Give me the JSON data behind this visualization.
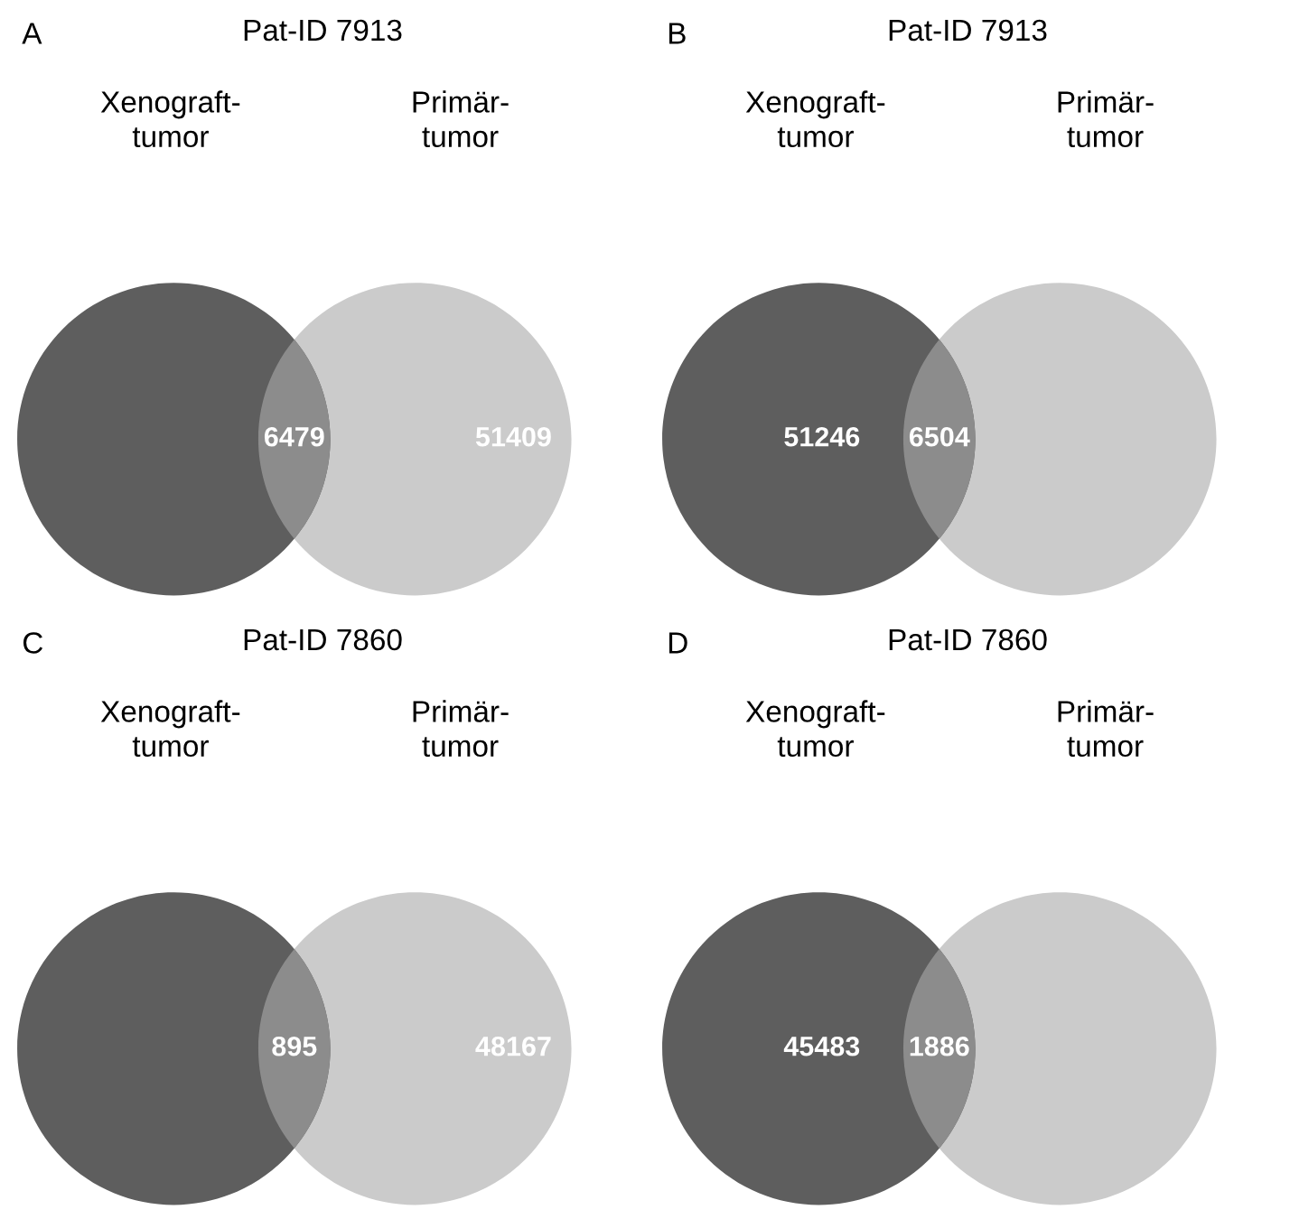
{
  "chart_data": [
    {
      "type": "other",
      "title": "Pat-ID 7913",
      "categories": [
        null,
        null,
        null
      ],
      "values": [
        null,
        6479,
        51409
      ],
      "colors": [
        "#5e5e5e",
        "#8c8c8c",
        "#cbcbcb"
      ],
      "data_labels": true,
      "annotations": [
        "A",
        "Xenograft-\ntumor",
        "Primär-\ntumor"
      ]
    },
    {
      "type": "other",
      "title": "Pat-ID 7913",
      "categories": [
        null,
        null,
        null
      ],
      "values": [
        51246,
        6504,
        null
      ],
      "colors": [
        "#5e5e5e",
        "#8c8c8c",
        "#cbcbcb"
      ],
      "data_labels": true,
      "annotations": [
        "B",
        "Xenograft-\ntumor",
        "Primär-\ntumor"
      ]
    },
    {
      "type": "other",
      "title": "Pat-ID 7860",
      "categories": [
        null,
        null,
        null
      ],
      "values": [
        null,
        895,
        48167
      ],
      "colors": [
        "#5e5e5e",
        "#8c8c8c",
        "#cbcbcb"
      ],
      "data_labels": true,
      "annotations": [
        "C",
        "Xenograft-\ntumor",
        "Primär-\ntumor"
      ]
    },
    {
      "type": "other",
      "title": "Pat-ID 7860",
      "categories": [
        null,
        null,
        null
      ],
      "values": [
        45483,
        1886,
        null
      ],
      "colors": [
        "#5e5e5e",
        "#8c8c8c",
        "#cbcbcb"
      ],
      "data_labels": true,
      "annotations": [
        "D",
        "Xenograft-\ntumor",
        "Primär-\ntumor"
      ]
    }
  ]
}
